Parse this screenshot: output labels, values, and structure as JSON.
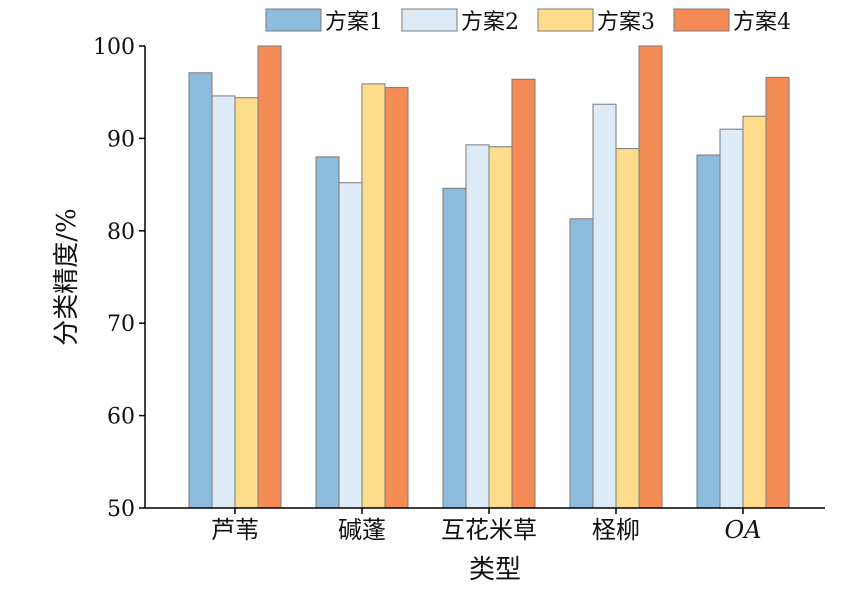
{
  "chart_data": {
    "type": "bar",
    "title": "",
    "xlabel": "类型",
    "ylabel": "分类精度/%",
    "ylim": [
      50,
      100
    ],
    "yticks": [
      50,
      60,
      70,
      80,
      90,
      100
    ],
    "categories": [
      "芦苇",
      "碱蓬",
      "互花米草",
      "柽柳",
      "OA"
    ],
    "series": [
      {
        "name": "方案1",
        "color": "#8dbcdc",
        "values": [
          97.1,
          88.0,
          84.6,
          81.3,
          88.2
        ]
      },
      {
        "name": "方案2",
        "color": "#dcebf5",
        "values": [
          94.6,
          85.2,
          89.3,
          93.7,
          91.0
        ]
      },
      {
        "name": "方案3",
        "color": "#fddc8c",
        "values": [
          94.4,
          95.9,
          89.1,
          88.9,
          92.4
        ]
      },
      {
        "name": "方案4",
        "color": "#f58c55",
        "values": [
          100,
          95.5,
          96.4,
          100,
          96.6
        ]
      }
    ],
    "legend": "top",
    "grid": false
  }
}
